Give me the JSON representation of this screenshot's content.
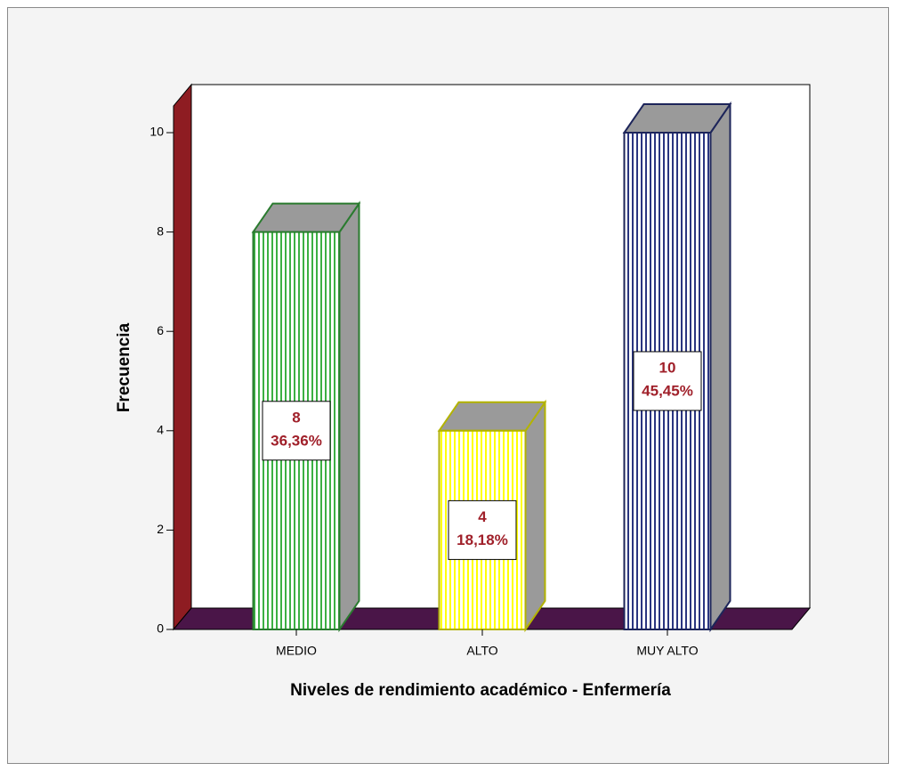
{
  "chart_data": {
    "type": "bar3d",
    "xlabel": "Niveles de rendimiento académico - Enfermería",
    "ylabel": "Frecuencia",
    "categories": [
      "MEDIO",
      "ALTO",
      "MUY ALTO"
    ],
    "values": [
      8,
      4,
      10
    ],
    "percent_labels": [
      "36,36%",
      "18,18%",
      "45,45%"
    ],
    "colors": [
      "#3cb043",
      "#ffff00",
      "#2a3580"
    ],
    "ylim": [
      0,
      10
    ],
    "yticks": [
      0,
      2,
      4,
      6,
      8,
      10
    ]
  }
}
